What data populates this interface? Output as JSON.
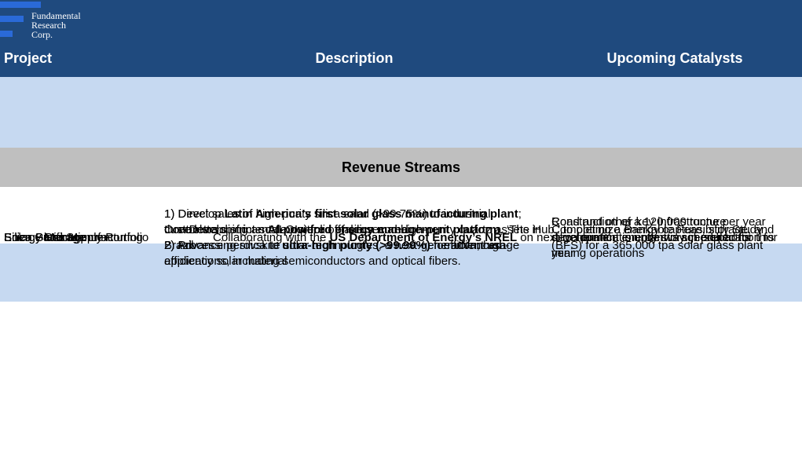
{
  "header": {
    "logo": [
      "Fundamental",
      "Research",
      "Corp."
    ],
    "columns": [
      "Project",
      "Description",
      "Upcoming Catalysts"
    ]
  },
  "rows": [
    {
      "project": "Silica Sand Supply Portfolio",
      "description": [
        [
          {
            "text": "Controls a district-scale portfolio of silica and high-purity quartz assets in Brazil",
            "bold": false
          }
        ]
      ],
      "catalysts": [
        [
          {
            "text": "Road and other key infrastructure development is underway in preparation for mining operations",
            "bold": false
          }
        ]
      ]
    }
  ],
  "section": "Revenue Streams",
  "revenue_rows": [
    {
      "project": "Silica Purification",
      "description": [
        [
          {
            "text": "1) Direct sales of high-purity silica sand (>99.75%) to industrial customers.",
            "bold": false
          }
        ],
        [
          {
            "text": "2) Processing silica to ",
            "bold": false
          },
          {
            "text": "ultra-high purity (>99.99%)",
            "bold": true
          },
          {
            "text": " for advanced applications, including semiconductors and optical fibers.",
            "bold": false
          }
        ]
      ],
      "catalysts": [
        [
          {
            "text": "Construction of a 120,000 tonne per year silica purification plant is scheduled for this year",
            "bold": false
          }
        ]
      ]
    },
    {
      "project": "Solar Glass Manufacturing",
      "description": [
        [
          {
            "text": "1) Develop ",
            "bold": false
          },
          {
            "text": "Latin America’s first solar glass manufacturing plant",
            "bold": true
          },
          {
            "text": "; three letters of intent (LOIs) for offtake secured",
            "bold": false
          }
        ],
        [
          {
            "text": "2) Advance perovskite solar technologies, a next-generation, high-efficiency solar material",
            "bold": false
          }
        ]
      ],
      "catalysts": [
        [
          {
            "text": "Completing a Bankable Feasibility Study (BFS) for a 365,000 tpa solar glass plant",
            "bold": false
          }
        ]
      ]
    },
    {
      "project": "Energy Storage",
      "description": [
        [
          {
            "text": "Collaborating with the ",
            "bold": false
          },
          {
            "text": "US Department of Energy’s NREL",
            "bold": true
          },
          {
            "text": " on next-generation energy storage solutions",
            "bold": false
          }
        ]
      ]
    },
    {
      "project": "Energy Management",
      "description": [
        [
          {
            "text": "Developing an ",
            "bold": false
          },
          {
            "text": "AI-powered energy management platform",
            "bold": true
          },
          {
            "text": ", ‘The Hub,’ to optimize energy capture, storage, and efficient usage",
            "bold": false
          }
        ]
      ]
    }
  ]
}
